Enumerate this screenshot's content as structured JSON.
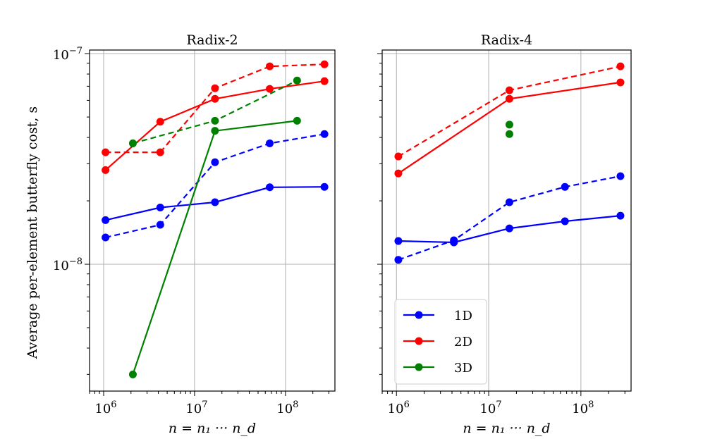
{
  "chart_data": [
    {
      "type": "line",
      "title": "Radix-2",
      "xlabel": "n = n₁ ··· n_d",
      "ylabel": "Average per-element butterfly cost, s",
      "xscale": "log",
      "yscale": "log",
      "xlim": [
        700000,
        350000000
      ],
      "ylim": [
        2.5e-09,
        1.04e-07
      ],
      "xticks": [
        {
          "value": 1000000,
          "base": "10",
          "exp": "6"
        },
        {
          "value": 10000000,
          "base": "10",
          "exp": "7"
        },
        {
          "value": 100000000,
          "base": "10",
          "exp": "8"
        }
      ],
      "yticks": [
        {
          "value": 1e-08,
          "base": "10",
          "exp": "−8"
        },
        {
          "value": 1e-07,
          "base": "10",
          "exp": "−7"
        }
      ],
      "grid": true,
      "series": [
        {
          "name": "1D",
          "style": "solid",
          "color": "#0000ff",
          "x": [
            1048576,
            4194304,
            16777216,
            67108864,
            268435456
          ],
          "y": [
            1.62e-08,
            1.86e-08,
            1.97e-08,
            2.32e-08,
            2.33e-08
          ]
        },
        {
          "name": "1D",
          "style": "dashed",
          "color": "#0000ff",
          "x": [
            1048576,
            4194304,
            16777216,
            67108864,
            268435456
          ],
          "y": [
            1.34e-08,
            1.54e-08,
            3.05e-08,
            3.75e-08,
            4.15e-08
          ]
        },
        {
          "name": "2D",
          "style": "solid",
          "color": "#ff0000",
          "x": [
            1048576,
            4194304,
            16777216,
            67108864,
            268435456
          ],
          "y": [
            2.8e-08,
            4.75e-08,
            6.1e-08,
            6.8e-08,
            7.4e-08
          ]
        },
        {
          "name": "2D",
          "style": "dashed",
          "color": "#ff0000",
          "x": [
            1048576,
            4194304,
            16777216,
            67108864,
            268435456
          ],
          "y": [
            3.4e-08,
            3.4e-08,
            6.85e-08,
            8.7e-08,
            8.9e-08
          ]
        },
        {
          "name": "3D",
          "style": "solid",
          "color": "#008000",
          "x": [
            2097152,
            16777216,
            134217728
          ],
          "y": [
            3e-09,
            4.3e-08,
            4.8e-08
          ]
        },
        {
          "name": "3D",
          "style": "dashed",
          "color": "#008000",
          "x": [
            2097152,
            16777216,
            134217728
          ],
          "y": [
            3.75e-08,
            4.8e-08,
            7.45e-08
          ]
        }
      ]
    },
    {
      "type": "line",
      "title": "Radix-4",
      "xlabel": "n = n₁ ··· n_d",
      "ylabel": "",
      "xscale": "log",
      "yscale": "log",
      "xlim": [
        700000,
        350000000
      ],
      "ylim": [
        2.5e-09,
        1.04e-07
      ],
      "xticks": [
        {
          "value": 1000000,
          "base": "10",
          "exp": "6"
        },
        {
          "value": 10000000,
          "base": "10",
          "exp": "7"
        },
        {
          "value": 100000000,
          "base": "10",
          "exp": "8"
        }
      ],
      "yticks": [],
      "grid": true,
      "series": [
        {
          "name": "1D",
          "style": "solid",
          "color": "#0000ff",
          "x": [
            1048576,
            4194304,
            16777216,
            67108864,
            268435456
          ],
          "y": [
            1.29e-08,
            1.27e-08,
            1.48e-08,
            1.6e-08,
            1.7e-08
          ]
        },
        {
          "name": "1D",
          "style": "dashed",
          "color": "#0000ff",
          "x": [
            1048576,
            4194304,
            16777216,
            67108864,
            268435456
          ],
          "y": [
            1.05e-08,
            1.3e-08,
            1.97e-08,
            2.33e-08,
            2.62e-08
          ]
        },
        {
          "name": "2D",
          "style": "solid",
          "color": "#ff0000",
          "x": [
            1048576,
            16777216,
            268435456
          ],
          "y": [
            2.7e-08,
            6.1e-08,
            7.3e-08
          ]
        },
        {
          "name": "2D",
          "style": "dashed",
          "color": "#ff0000",
          "x": [
            1048576,
            16777216,
            268435456
          ],
          "y": [
            3.25e-08,
            6.7e-08,
            8.7e-08
          ]
        },
        {
          "name": "3D",
          "style": "points",
          "color": "#008000",
          "x": [
            16777216,
            16777216
          ],
          "y": [
            4.6e-08,
            4.15e-08
          ]
        }
      ]
    }
  ],
  "legend": {
    "location": "lower-left of Radix-4 panel",
    "entries": [
      {
        "label": "1D",
        "color": "#0000ff"
      },
      {
        "label": "2D",
        "color": "#ff0000"
      },
      {
        "label": "3D",
        "color": "#008000"
      }
    ]
  },
  "ylabel_symbol": "s"
}
